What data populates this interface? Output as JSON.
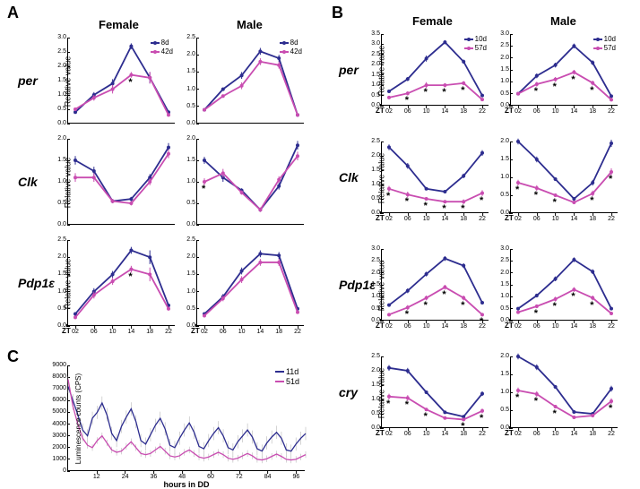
{
  "panel_labels": {
    "A": "A",
    "B": "B",
    "C": "C"
  },
  "colors": {
    "young": "#2d2d8f",
    "old": "#c94db1",
    "axis": "#000000",
    "bg": "#ffffff"
  },
  "col_headers": {
    "female": "Female",
    "male": "Male"
  },
  "ylabel": "Relative value",
  "panelA": {
    "genes": [
      "per",
      "Clk",
      "Pdp1ε"
    ],
    "young_label": "8d",
    "old_label": "42d",
    "xticks": [
      "02",
      "06",
      "10",
      "14",
      "18",
      "22"
    ],
    "xprefix": "ZT",
    "charts": {
      "per_f": {
        "ymax": 3.0,
        "ytick": 0.5,
        "young": [
          0.4,
          1.0,
          1.4,
          2.7,
          1.6,
          0.4
        ],
        "old": [
          0.5,
          0.9,
          1.2,
          1.7,
          1.6,
          0.3
        ],
        "err": [
          0,
          0.1,
          0.15,
          0.1,
          0.2,
          0.05
        ],
        "stars": [
          3
        ]
      },
      "per_m": {
        "ymax": 2.5,
        "ytick": 0.5,
        "young": [
          0.4,
          1.0,
          1.4,
          2.1,
          1.9,
          0.25
        ],
        "old": [
          0.4,
          0.8,
          1.1,
          1.8,
          1.7,
          0.25
        ],
        "err": [
          0.05,
          0.05,
          0.1,
          0.1,
          0.1,
          0.05
        ],
        "stars": []
      },
      "clk_f": {
        "ymax": 2.0,
        "ytick": 0.5,
        "young": [
          1.5,
          1.25,
          0.55,
          0.6,
          1.1,
          1.8
        ],
        "old": [
          1.1,
          1.1,
          0.55,
          0.5,
          1.0,
          1.65
        ],
        "err": [
          0.1,
          0.1,
          0.05,
          0.05,
          0.08,
          0.1
        ],
        "stars": []
      },
      "clk_m": {
        "ymax": 2.0,
        "ytick": 0.5,
        "young": [
          1.5,
          1.1,
          0.8,
          0.35,
          0.9,
          1.85
        ],
        "old": [
          1.0,
          1.2,
          0.75,
          0.35,
          1.05,
          1.6
        ],
        "err": [
          0.08,
          0.1,
          0.05,
          0.05,
          0.08,
          0.1
        ],
        "stars": [
          0
        ]
      },
      "pdp_f": {
        "ymax": 2.5,
        "ytick": 0.5,
        "young": [
          0.35,
          1.0,
          1.5,
          2.2,
          2.0,
          0.6
        ],
        "old": [
          0.25,
          0.9,
          1.3,
          1.65,
          1.5,
          0.5
        ],
        "err": [
          0.05,
          0.1,
          0.1,
          0.1,
          0.2,
          0.05
        ],
        "stars": [
          3
        ]
      },
      "pdp_m": {
        "ymax": 2.5,
        "ytick": 0.5,
        "young": [
          0.35,
          0.85,
          1.6,
          2.1,
          2.05,
          0.5
        ],
        "old": [
          0.3,
          0.8,
          1.35,
          1.85,
          1.85,
          0.4
        ],
        "err": [
          0.05,
          0.08,
          0.1,
          0.1,
          0.1,
          0.05
        ],
        "stars": []
      }
    }
  },
  "panelB": {
    "genes": [
      "per",
      "Clk",
      "Pdp1ε",
      "cry"
    ],
    "young_label": "10d",
    "old_label": "57d",
    "xticks": [
      "02",
      "06",
      "10",
      "14",
      "18",
      "22"
    ],
    "xprefix": "ZT",
    "charts": {
      "per_f": {
        "ymax": 3.5,
        "ytick": 0.5,
        "young": [
          0.7,
          1.3,
          2.3,
          3.1,
          2.15,
          0.5
        ],
        "old": [
          0.4,
          0.6,
          1.0,
          1.0,
          1.1,
          0.3
        ],
        "err": [
          0.05,
          0.1,
          0.15,
          0.1,
          0.1,
          0.05
        ],
        "stars": [
          1,
          2,
          3,
          4
        ]
      },
      "per_m": {
        "ymax": 3.0,
        "ytick": 0.5,
        "young": [
          0.5,
          1.25,
          1.7,
          2.5,
          1.8,
          0.4
        ],
        "old": [
          0.5,
          0.9,
          1.1,
          1.4,
          0.95,
          0.25
        ],
        "err": [
          0.05,
          0.1,
          0.1,
          0.1,
          0.1,
          0.05
        ],
        "stars": [
          1,
          2,
          3,
          4
        ]
      },
      "clk_f": {
        "ymax": 2.5,
        "ytick": 0.5,
        "young": [
          2.3,
          1.65,
          0.85,
          0.75,
          1.3,
          2.1
        ],
        "old": [
          0.85,
          0.65,
          0.5,
          0.4,
          0.4,
          0.7
        ],
        "err": [
          0.1,
          0.1,
          0.05,
          0.05,
          0.08,
          0.1
        ],
        "stars": [
          0,
          1,
          2,
          3,
          4,
          5
        ]
      },
      "clk_m": {
        "ymax": 2.0,
        "ytick": 0.5,
        "young": [
          2.0,
          1.5,
          0.95,
          0.4,
          0.85,
          1.95
        ],
        "old": [
          0.85,
          0.7,
          0.5,
          0.3,
          0.55,
          1.15
        ],
        "err": [
          0.08,
          0.08,
          0.05,
          0.05,
          0.08,
          0.1
        ],
        "stars": [
          0,
          1,
          2,
          4,
          5
        ]
      },
      "pdp_f": {
        "ymax": 3.0,
        "ytick": 0.5,
        "young": [
          0.65,
          1.25,
          1.95,
          2.6,
          2.3,
          0.75
        ],
        "old": [
          0.25,
          0.55,
          0.95,
          1.4,
          0.95,
          0.25
        ],
        "err": [
          0.05,
          0.1,
          0.1,
          0.1,
          0.1,
          0.05
        ],
        "stars": [
          1,
          2,
          3,
          4,
          5
        ]
      },
      "pdp_m": {
        "ymax": 3.0,
        "ytick": 0.5,
        "young": [
          0.5,
          1.05,
          1.75,
          2.55,
          2.05,
          0.5
        ],
        "old": [
          0.35,
          0.6,
          0.9,
          1.3,
          0.95,
          0.3
        ],
        "err": [
          0.05,
          0.08,
          0.1,
          0.1,
          0.1,
          0.05
        ],
        "stars": [
          1,
          2,
          3,
          4
        ]
      },
      "cry_f": {
        "ymax": 2.5,
        "ytick": 0.5,
        "young": [
          2.1,
          2.0,
          1.25,
          0.55,
          0.4,
          1.2
        ],
        "old": [
          1.1,
          1.05,
          0.65,
          0.35,
          0.3,
          0.6
        ],
        "err": [
          0.1,
          0.1,
          0.05,
          0.05,
          0.05,
          0.08
        ],
        "stars": [
          0,
          1,
          2,
          4,
          5
        ]
      },
      "cry_m": {
        "ymax": 2.0,
        "ytick": 0.5,
        "young": [
          2.0,
          1.7,
          1.15,
          0.45,
          0.4,
          1.1
        ],
        "old": [
          1.05,
          0.95,
          0.6,
          0.3,
          0.35,
          0.75
        ],
        "err": [
          0.08,
          0.08,
          0.05,
          0.05,
          0.05,
          0.08
        ],
        "stars": [
          0,
          1,
          2,
          5
        ]
      }
    }
  },
  "panelC": {
    "young_label": "11d",
    "old_label": "51d",
    "ylabel": "Luminescence counts (CPS)",
    "xlabel": "hours in DD",
    "ymax": 9000,
    "ytick": 1000,
    "xmax": 100,
    "xtick_step": 12,
    "xticks": [
      12,
      24,
      36,
      48,
      60,
      72,
      84,
      96
    ],
    "young_data": [
      7200,
      6000,
      4800,
      3500,
      3000,
      4500,
      5000,
      5800,
      4800,
      3200,
      2600,
      3800,
      4600,
      5300,
      4200,
      2600,
      2300,
      3100,
      3900,
      4500,
      3600,
      2200,
      2000,
      2800,
      3500,
      4100,
      3300,
      2100,
      1900,
      2600,
      3200,
      3700,
      3000,
      2000,
      1800,
      2500,
      3000,
      3500,
      2900,
      1900,
      1700,
      2400,
      2900,
      3300,
      2800,
      1800,
      1700,
      2300,
      2800,
      3200
    ],
    "old_data": [
      7800,
      5500,
      4000,
      2800,
      2200,
      2000,
      2600,
      3000,
      2400,
      1800,
      1600,
      1700,
      2100,
      2500,
      2000,
      1500,
      1400,
      1500,
      1800,
      2100,
      1700,
      1300,
      1200,
      1300,
      1600,
      1800,
      1500,
      1200,
      1100,
      1200,
      1400,
      1600,
      1400,
      1100,
      1000,
      1100,
      1300,
      1500,
      1300,
      1000,
      950,
      1050,
      1250,
      1450,
      1250,
      1000,
      950,
      1000,
      1200,
      1400
    ],
    "err": 800
  }
}
